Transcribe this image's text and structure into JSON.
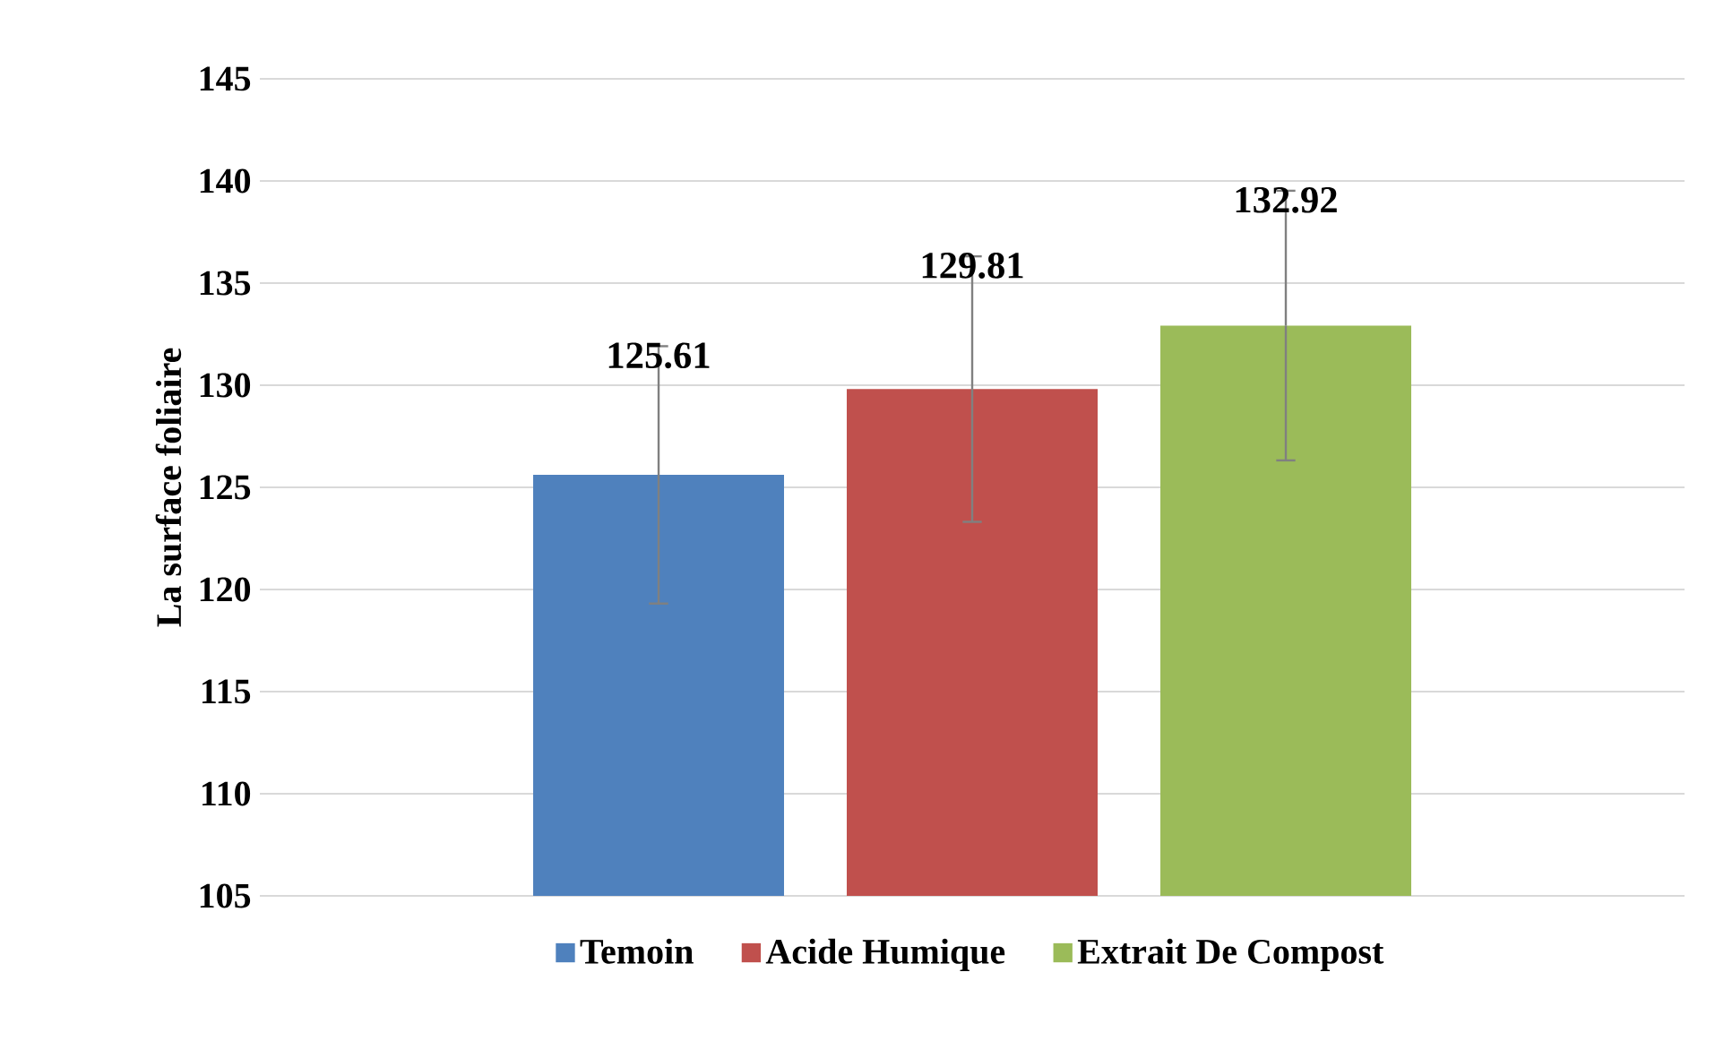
{
  "chart_data": {
    "type": "bar",
    "ylabel": "La surface foliaire",
    "categories": [
      null
    ],
    "series": [
      {
        "name": "Temoin",
        "color": "#4f81bd",
        "values": [
          125.61
        ],
        "errors": [
          6.3
        ]
      },
      {
        "name": "Acide Humique",
        "color": "#c0504d",
        "values": [
          129.81
        ],
        "errors": [
          6.5
        ]
      },
      {
        "name": "Extrait De Compost",
        "color": "#9bbb59",
        "values": [
          132.92
        ],
        "errors": [
          6.6
        ]
      }
    ],
    "ylim": [
      105,
      145
    ],
    "yticks": [
      105,
      110,
      115,
      120,
      125,
      130,
      135,
      140,
      145
    ],
    "grid": "y",
    "legend": "bottom",
    "data_labels": true
  }
}
